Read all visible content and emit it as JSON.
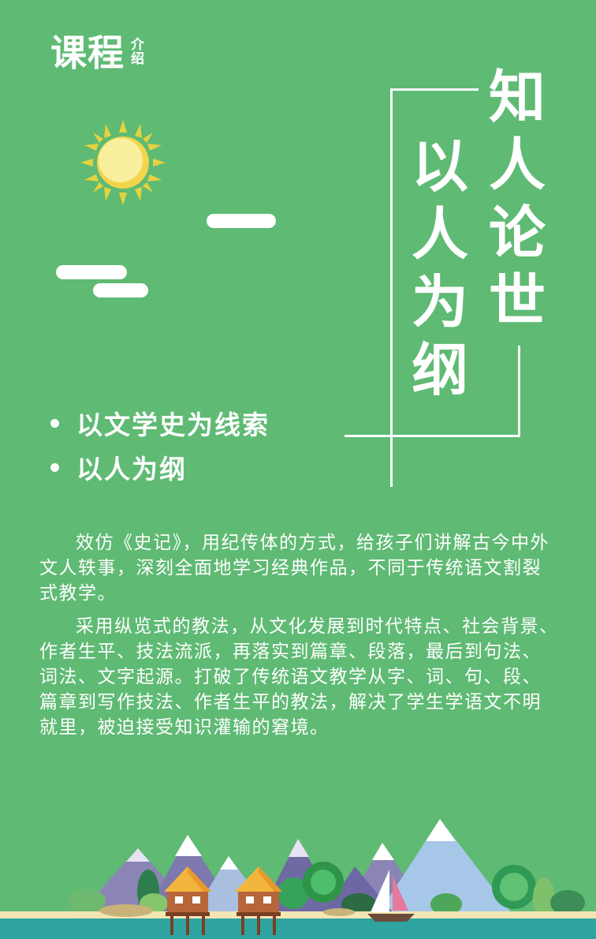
{
  "header": {
    "main": "课程",
    "sub": [
      "介",
      "绍"
    ]
  },
  "slogan": {
    "right_column": [
      "知",
      "人",
      "论",
      "世"
    ],
    "left_column": [
      "以",
      "人",
      "为",
      "纲"
    ]
  },
  "bullets": [
    "以文学史为线索",
    "以人为纲"
  ],
  "intro": {
    "paragraphs": [
      "效仿《史记》，用纪传体的方式，给孩子们讲解古今中外文人轶事，深刻全面地学习经典作品，不同于传统语文割裂式教学。",
      "采用纵览式的教法，从文化发展到时代特点、社会背景、作者生平、技法流派，再落实到篇章、段落，最后到句法、词法、文字起源。打破了传统语文教学从字、词、句、段、篇章到写作技法、作者生平的教法，解决了学生学语文不明就里，被迫接受知识灌输的窘境。"
    ]
  },
  "colors": {
    "background": "#5fba74",
    "text": "#ffffff",
    "sun": "#f7e16b",
    "water": "#2fa3a0",
    "sand": "#f3e6b4"
  },
  "icons": [
    "sun-icon",
    "cloud-icon",
    "mountain-icon",
    "stilt-hut-icon",
    "sailboat-icon",
    "tree-icon"
  ]
}
